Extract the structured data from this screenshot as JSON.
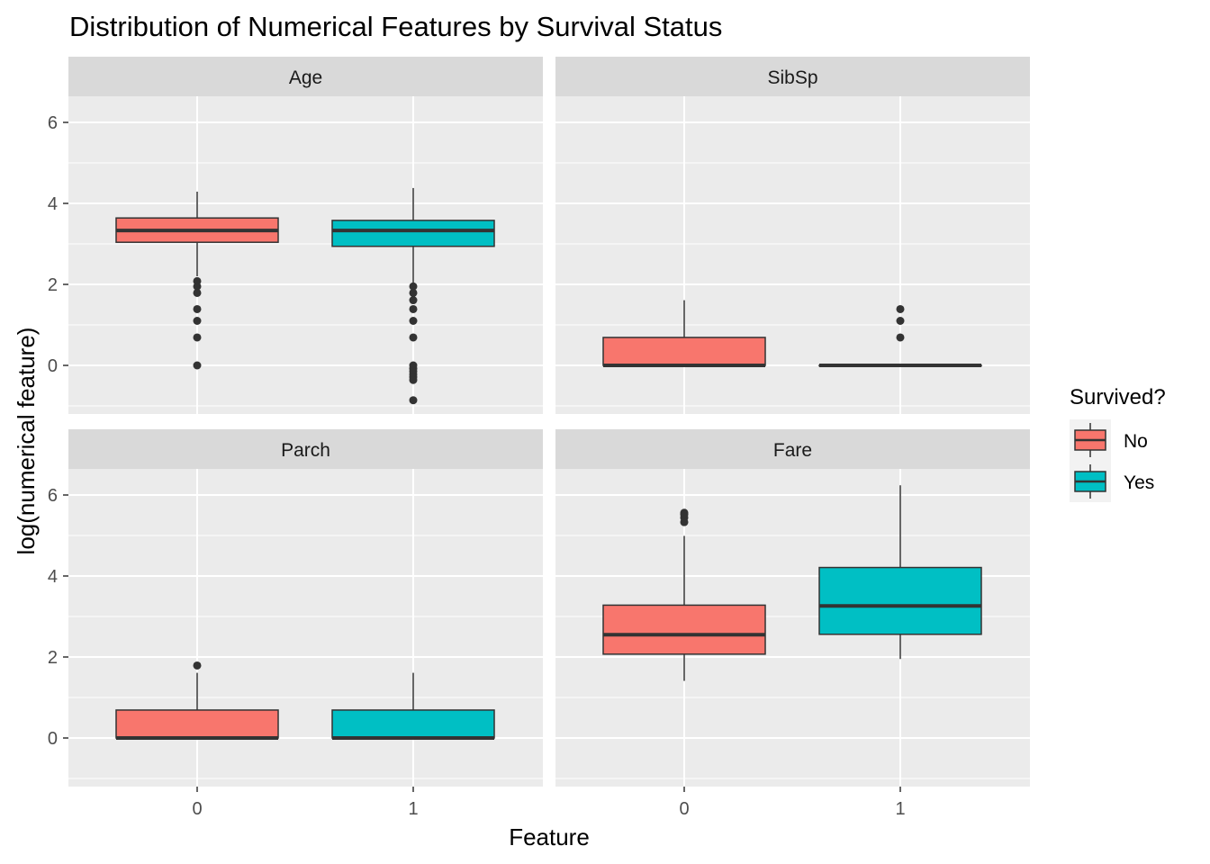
{
  "chart_data": {
    "type": "box",
    "title": "Distribution of Numerical Features by Survival Status",
    "xlabel": "Feature",
    "ylabel": "log(numerical feature)",
    "categories": [
      "0",
      "1"
    ],
    "y_ticks": [
      0,
      2,
      4,
      6
    ],
    "ylim": [
      -1.0,
      6.6
    ],
    "grid": true,
    "legend": {
      "title": "Survived?",
      "position": "right",
      "entries": [
        {
          "label": "No",
          "color": "#F8766D"
        },
        {
          "label": "Yes",
          "color": "#00BFC4"
        }
      ]
    },
    "facets": [
      {
        "name": "Age",
        "boxes": [
          {
            "x": "0",
            "group": "No",
            "q1": 3.04,
            "median": 3.33,
            "q3": 3.64,
            "whisker_low": 2.2,
            "whisker_high": 4.29,
            "outliers": [
              2.08,
              1.95,
              1.79,
              1.39,
              1.1,
              0.69,
              0.0
            ]
          },
          {
            "x": "1",
            "group": "Yes",
            "q1": 2.94,
            "median": 3.33,
            "q3": 3.58,
            "whisker_low": 2.0,
            "whisker_high": 4.38,
            "outliers": [
              1.95,
              1.79,
              1.61,
              1.39,
              1.1,
              0.69,
              0.0,
              -0.08,
              -0.15,
              -0.22,
              -0.29,
              -0.36,
              -0.86
            ]
          }
        ]
      },
      {
        "name": "SibSp",
        "boxes": [
          {
            "x": "0",
            "group": "No",
            "q1": 0.0,
            "median": 0.0,
            "q3": 0.69,
            "whisker_low": 0.0,
            "whisker_high": 1.61,
            "outliers": []
          },
          {
            "x": "1",
            "group": "Yes",
            "q1": 0.0,
            "median": 0.0,
            "q3": 0.0,
            "whisker_low": 0.0,
            "whisker_high": 0.0,
            "outliers": [
              0.69,
              1.1,
              1.39
            ]
          }
        ]
      },
      {
        "name": "Parch",
        "boxes": [
          {
            "x": "0",
            "group": "No",
            "q1": 0.0,
            "median": 0.0,
            "q3": 0.69,
            "whisker_low": 0.0,
            "whisker_high": 1.61,
            "outliers": [
              1.79
            ]
          },
          {
            "x": "1",
            "group": "Yes",
            "q1": 0.0,
            "median": 0.0,
            "q3": 0.69,
            "whisker_low": 0.0,
            "whisker_high": 1.61,
            "outliers": []
          }
        ]
      },
      {
        "name": "Fare",
        "boxes": [
          {
            "x": "0",
            "group": "No",
            "q1": 2.07,
            "median": 2.55,
            "q3": 3.28,
            "whisker_low": 1.41,
            "whisker_high": 4.99,
            "outliers": [
              5.33,
              5.44,
              5.52,
              5.56
            ]
          },
          {
            "x": "1",
            "group": "Yes",
            "q1": 2.56,
            "median": 3.26,
            "q3": 4.21,
            "whisker_low": 1.95,
            "whisker_high": 6.24,
            "outliers": []
          }
        ]
      }
    ]
  }
}
